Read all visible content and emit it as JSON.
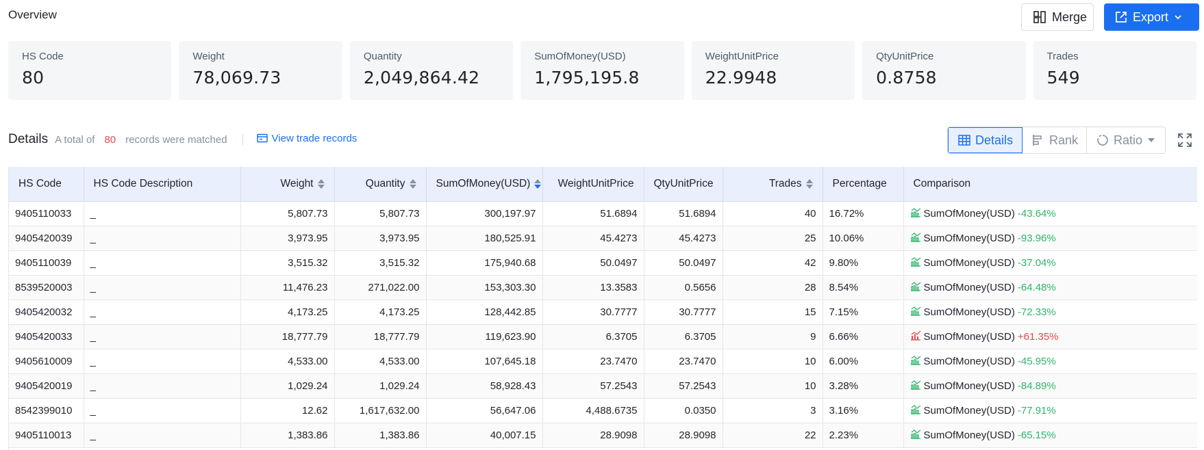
{
  "header": {
    "title": "Overview",
    "merge_label": "Merge",
    "export_label": "Export",
    "accent_color": "#1a6ff0"
  },
  "stats": [
    {
      "label": "HS Code",
      "value": "80"
    },
    {
      "label": "Weight",
      "value": "78,069.73"
    },
    {
      "label": "Quantity",
      "value": "2,049,864.42"
    },
    {
      "label": "SumOfMoney(USD)",
      "value": "1,795,195.8"
    },
    {
      "label": "WeightUnitPrice",
      "value": "22.9948"
    },
    {
      "label": "QtyUnitPrice",
      "value": "0.8758"
    },
    {
      "label": "Trades",
      "value": "549"
    }
  ],
  "details": {
    "title": "Details",
    "prefix": "A total of",
    "count": "80",
    "suffix": "records were matched",
    "view_link": "View trade records",
    "views": {
      "details": "Details",
      "rank": "Rank",
      "ratio": "Ratio"
    },
    "active_view": "details"
  },
  "table": {
    "columns": [
      "HS Code",
      "HS Code Description",
      "Weight",
      "Quantity",
      "SumOfMoney(USD)",
      "WeightUnitPrice",
      "QtyUnitPrice",
      "Trades",
      "Percentage",
      "Comparison"
    ],
    "sorted_column": "SumOfMoney(USD)",
    "sort_direction": "desc",
    "rows": [
      {
        "hs": "9405110033",
        "desc": "_",
        "weight": "5,807.73",
        "qty": "5,807.73",
        "sum": "300,197.97",
        "wup": "51.6894",
        "qup": "51.6894",
        "trades": "40",
        "pct": "16.72%",
        "cmp_label": "SumOfMoney(USD)",
        "cmp_delta": "-43.64%",
        "trend": "down"
      },
      {
        "hs": "9405420039",
        "desc": "_",
        "weight": "3,973.95",
        "qty": "3,973.95",
        "sum": "180,525.91",
        "wup": "45.4273",
        "qup": "45.4273",
        "trades": "25",
        "pct": "10.06%",
        "cmp_label": "SumOfMoney(USD)",
        "cmp_delta": "-93.96%",
        "trend": "down"
      },
      {
        "hs": "9405110039",
        "desc": "_",
        "weight": "3,515.32",
        "qty": "3,515.32",
        "sum": "175,940.68",
        "wup": "50.0497",
        "qup": "50.0497",
        "trades": "42",
        "pct": "9.80%",
        "cmp_label": "SumOfMoney(USD)",
        "cmp_delta": "-37.04%",
        "trend": "down"
      },
      {
        "hs": "8539520003",
        "desc": "_",
        "weight": "11,476.23",
        "qty": "271,022.00",
        "sum": "153,303.30",
        "wup": "13.3583",
        "qup": "0.5656",
        "trades": "28",
        "pct": "8.54%",
        "cmp_label": "SumOfMoney(USD)",
        "cmp_delta": "-64.48%",
        "trend": "down"
      },
      {
        "hs": "9405420032",
        "desc": "_",
        "weight": "4,173.25",
        "qty": "4,173.25",
        "sum": "128,442.85",
        "wup": "30.7777",
        "qup": "30.7777",
        "trades": "15",
        "pct": "7.15%",
        "cmp_label": "SumOfMoney(USD)",
        "cmp_delta": "-72.33%",
        "trend": "down"
      },
      {
        "hs": "9405420033",
        "desc": "_",
        "weight": "18,777.79",
        "qty": "18,777.79",
        "sum": "119,623.90",
        "wup": "6.3705",
        "qup": "6.3705",
        "trades": "9",
        "pct": "6.66%",
        "cmp_label": "SumOfMoney(USD)",
        "cmp_delta": "+61.35%",
        "trend": "up"
      },
      {
        "hs": "9405610009",
        "desc": "_",
        "weight": "4,533.00",
        "qty": "4,533.00",
        "sum": "107,645.18",
        "wup": "23.7470",
        "qup": "23.7470",
        "trades": "10",
        "pct": "6.00%",
        "cmp_label": "SumOfMoney(USD)",
        "cmp_delta": "-45.95%",
        "trend": "down"
      },
      {
        "hs": "9405420019",
        "desc": "_",
        "weight": "1,029.24",
        "qty": "1,029.24",
        "sum": "58,928.43",
        "wup": "57.2543",
        "qup": "57.2543",
        "trades": "10",
        "pct": "3.28%",
        "cmp_label": "SumOfMoney(USD)",
        "cmp_delta": "-84.89%",
        "trend": "down"
      },
      {
        "hs": "8542399010",
        "desc": "_",
        "weight": "12.62",
        "qty": "1,617,632.00",
        "sum": "56,647.06",
        "wup": "4,488.6735",
        "qup": "0.0350",
        "trades": "3",
        "pct": "3.16%",
        "cmp_label": "SumOfMoney(USD)",
        "cmp_delta": "-77.91%",
        "trend": "down"
      },
      {
        "hs": "9405110013",
        "desc": "_",
        "weight": "1,383.86",
        "qty": "1,383.86",
        "sum": "40,007.15",
        "wup": "28.9098",
        "qup": "28.9098",
        "trades": "22",
        "pct": "2.23%",
        "cmp_label": "SumOfMoney(USD)",
        "cmp_delta": "-65.15%",
        "trend": "down"
      }
    ]
  },
  "colors": {
    "up": "#e5484d",
    "down": "#2fb56a",
    "header_bg": "#e9effc"
  }
}
